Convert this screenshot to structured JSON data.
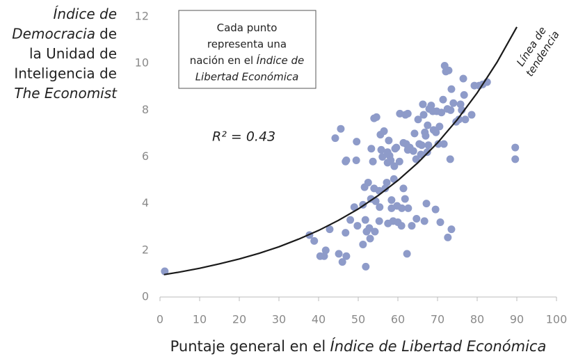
{
  "chart_data": {
    "type": "scatter",
    "ylabel": [
      [
        {
          "text": "Índice de",
          "italic": true
        }
      ],
      [
        {
          "text": "Democracia",
          "italic": true
        },
        {
          "text": "de",
          "italic": false
        }
      ],
      [
        {
          "text": "la Unidad de",
          "italic": false
        }
      ],
      [
        {
          "text": "Inteligencia de",
          "italic": false
        }
      ],
      [
        {
          "text": "The Economist",
          "italic": true
        }
      ]
    ],
    "xlabel": [
      [
        {
          "text": "Puntaje general en el",
          "italic": false
        },
        {
          "text": "Índice de Libertad Económica",
          "italic": true
        }
      ]
    ],
    "note": [
      [
        {
          "text": "Cada punto",
          "italic": false
        }
      ],
      [
        {
          "text": "representa una",
          "italic": false
        }
      ],
      [
        {
          "text": "nación en el",
          "italic": false
        },
        {
          "text": "Índice de",
          "italic": true
        }
      ],
      [
        {
          "text": "Libertad Económica",
          "italic": true
        }
      ]
    ],
    "r2_label": "R² = 0.43",
    "trend_label": [
      "Línea de",
      "tendencia"
    ],
    "color": "#8e9bc9",
    "x": [
      1.2,
      37.7,
      38.9,
      40.4,
      41.4,
      41.8,
      42.8,
      44.2,
      45.6,
      45.1,
      46,
      47,
      46.8,
      46.8,
      47,
      48,
      49,
      49.6,
      49.5,
      49.8,
      51.2,
      51.6,
      51.2,
      51.9,
      51.8,
      52.1,
      52.5,
      52.8,
      53.3,
      53,
      53.2,
      54,
      54.6,
      53.7,
      54,
      54.2,
      54.4,
      55.3,
      55.3,
      55.4,
      55.6,
      55.8,
      56.1,
      56.5,
      56.8,
      57.2,
      57.4,
      57.4,
      57.5,
      57.7,
      57.9,
      58.2,
      58.4,
      58.4,
      58.8,
      59,
      59.1,
      59.3,
      59.6,
      59.8,
      60,
      60.4,
      60.5,
      60.9,
      61,
      61.4,
      61.4,
      61.8,
      61.9,
      62.1,
      62.3,
      62.5,
      62.5,
      62.6,
      63,
      63.5,
      63.9,
      64.2,
      64.6,
      64.7,
      65.1,
      65.4,
      65.8,
      66,
      66.3,
      66.5,
      66.7,
      66.8,
      67,
      67.2,
      67.4,
      67.5,
      67.7,
      67.9,
      68.4,
      68.8,
      69,
      69.5,
      69.6,
      69.8,
      70.2,
      70.5,
      70.7,
      71,
      71.4,
      71.6,
      71.8,
      72.1,
      72.5,
      72.6,
      72.8,
      73.2,
      73.3,
      73.5,
      73.5,
      74,
      74.7,
      75.4,
      75.8,
      76.1,
      76.5,
      76.7,
      77,
      78.6,
      79.3,
      80.5,
      81.4,
      82.5,
      89.6,
      89.6
    ],
    "values": [
      1.1,
      2.65,
      2.4,
      1.75,
      1.75,
      2.0,
      2.9,
      6.8,
      7.2,
      1.85,
      1.5,
      1.75,
      2.75,
      5.8,
      5.85,
      3.3,
      3.85,
      6.65,
      5.85,
      3.05,
      3.95,
      4.7,
      2.25,
      1.3,
      3.3,
      2.8,
      4.9,
      2.95,
      6.35,
      2.5,
      4.2,
      7.65,
      7.7,
      5.8,
      4.65,
      2.8,
      4.1,
      3.25,
      4.55,
      3.85,
      6.95,
      6.3,
      6.0,
      7.1,
      4.65,
      4.9,
      6.2,
      5.75,
      3.15,
      6.7,
      6.05,
      5.85,
      4.15,
      3.8,
      3.25,
      5.05,
      5.6,
      6.35,
      6.4,
      3.9,
      3.2,
      5.8,
      7.85,
      3.05,
      3.8,
      6.6,
      4.65,
      4.2,
      7.8,
      6.55,
      1.85,
      7.85,
      6.3,
      3.8,
      6.4,
      3.05,
      6.25,
      7.0,
      5.9,
      3.35,
      7.6,
      6.55,
      6.1,
      6.5,
      8.25,
      7.8,
      3.25,
      7.05,
      6.9,
      4.0,
      6.2,
      7.35,
      6.5,
      8.05,
      8.2,
      7.95,
      7.15,
      3.75,
      7.05,
      7.95,
      6.55,
      7.3,
      3.2,
      7.9,
      8.45,
      6.55,
      9.9,
      9.65,
      8.05,
      2.55,
      9.7,
      5.9,
      8.0,
      2.9,
      8.9,
      8.3,
      7.5,
      7.6,
      8.25,
      8.0,
      9.35,
      8.65,
      7.6,
      7.8,
      9.05,
      9.05,
      9.1,
      9.2,
      6.4,
      5.9
    ],
    "trendline": {
      "color": "#1a1a1a",
      "x": [
        1,
        5,
        10,
        15,
        20,
        25,
        30,
        35,
        40,
        45,
        50,
        55,
        60,
        65,
        70,
        75,
        80,
        85,
        90
      ],
      "values": [
        0.96,
        1.07,
        1.23,
        1.42,
        1.63,
        1.87,
        2.15,
        2.48,
        2.85,
        3.28,
        3.77,
        4.34,
        4.99,
        5.74,
        6.6,
        7.6,
        8.74,
        10.05,
        11.56
      ]
    },
    "xlim": [
      0,
      100
    ],
    "xticks": [
      0,
      10,
      20,
      30,
      40,
      50,
      60,
      70,
      80,
      90,
      100
    ],
    "ylim": [
      0,
      12
    ],
    "yticks": [
      0,
      2,
      4,
      6,
      8,
      10,
      12
    ],
    "grid": false
  }
}
